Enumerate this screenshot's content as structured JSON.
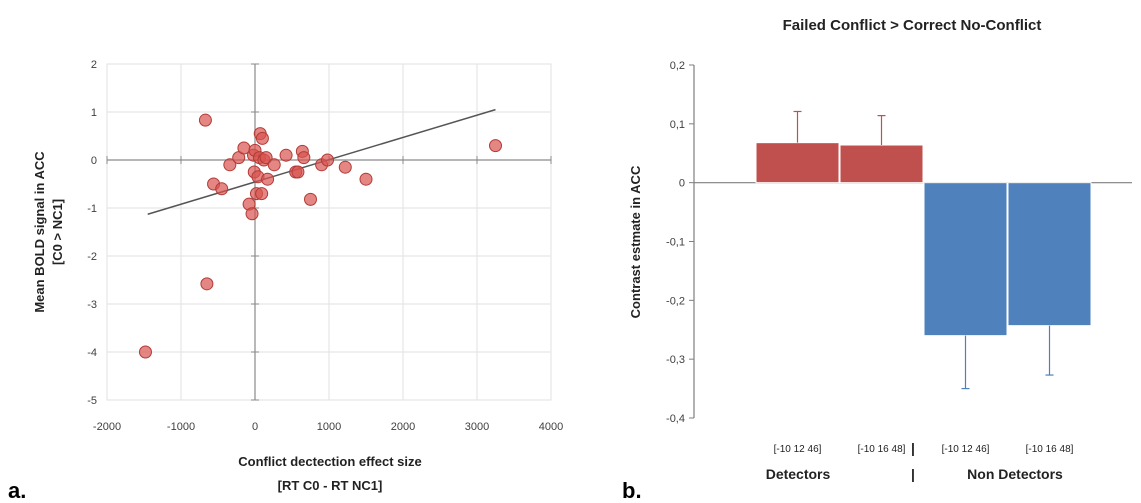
{
  "panels": {
    "a_label": "a.",
    "b_label": "b."
  },
  "chart_data": [
    {
      "type": "scatter",
      "title": "",
      "xlabel_line1": "Conflict dectection effect size",
      "xlabel_line2": "[RT C0 - RT NC1]",
      "ylabel_line1": "Mean BOLD signal in ACC",
      "ylabel_line2": "[C0 > NC1]",
      "xlim": [
        -2000,
        4000
      ],
      "ylim": [
        -5,
        2
      ],
      "xticks": [
        "-2000",
        "-1000",
        "0",
        "1000",
        "2000",
        "3000",
        "4000"
      ],
      "yticks": [
        "2",
        "1",
        "0",
        "-1",
        "-2",
        "-3",
        "-4",
        "-5"
      ],
      "grid": true,
      "colors": {
        "points": "#d9534f",
        "trendline": "#555555"
      },
      "trendline": {
        "x": [
          -1450,
          3250
        ],
        "y": [
          -1.13,
          1.05
        ]
      },
      "points": [
        {
          "x": -1480,
          "y": -4.0
        },
        {
          "x": -670,
          "y": 0.83
        },
        {
          "x": -650,
          "y": -2.58
        },
        {
          "x": -560,
          "y": -0.5
        },
        {
          "x": -450,
          "y": -0.6
        },
        {
          "x": -340,
          "y": -0.1
        },
        {
          "x": -220,
          "y": 0.05
        },
        {
          "x": -150,
          "y": 0.25
        },
        {
          "x": -80,
          "y": -0.92
        },
        {
          "x": -40,
          "y": -1.12
        },
        {
          "x": -20,
          "y": 0.1
        },
        {
          "x": -10,
          "y": -0.25
        },
        {
          "x": 0,
          "y": 0.2
        },
        {
          "x": 20,
          "y": -0.7
        },
        {
          "x": 40,
          "y": -0.35
        },
        {
          "x": 60,
          "y": 0.05
        },
        {
          "x": 70,
          "y": 0.55
        },
        {
          "x": 90,
          "y": -0.7
        },
        {
          "x": 100,
          "y": 0.45
        },
        {
          "x": 120,
          "y": 0.0
        },
        {
          "x": 150,
          "y": 0.05
        },
        {
          "x": 170,
          "y": -0.4
        },
        {
          "x": 260,
          "y": -0.1
        },
        {
          "x": 420,
          "y": 0.1
        },
        {
          "x": 550,
          "y": -0.25
        },
        {
          "x": 580,
          "y": -0.25
        },
        {
          "x": 640,
          "y": 0.18
        },
        {
          "x": 660,
          "y": 0.05
        },
        {
          "x": 750,
          "y": -0.82
        },
        {
          "x": 900,
          "y": -0.1
        },
        {
          "x": 980,
          "y": 0.0
        },
        {
          "x": 1220,
          "y": -0.15
        },
        {
          "x": 1500,
          "y": -0.4
        },
        {
          "x": 3250,
          "y": 0.3
        }
      ]
    },
    {
      "type": "bar",
      "title": "Failed Conflict > Correct No-Conflict",
      "xlabel": "",
      "ylabel": "Contrast estmate in ACC",
      "ylim": [
        -0.4,
        0.2
      ],
      "yticks": [
        "0,2",
        "0,1",
        "0",
        "-0,1",
        "-0,2",
        "-0,3",
        "-0,4"
      ],
      "grid": false,
      "categories": [
        "[-10 12 46]",
        "[-10 16 48]",
        "[-10 12 46]",
        "[-10 16 48]"
      ],
      "groups": [
        "Detectors",
        "Non Detectors"
      ],
      "group_separator": "|",
      "values": [
        0.068,
        0.064,
        -0.26,
        -0.243
      ],
      "errors": [
        0.053,
        0.05,
        0.09,
        0.084
      ],
      "colors": [
        "#c0504d",
        "#c0504d",
        "#4f81bd",
        "#4f81bd"
      ],
      "error_colors": [
        "#c0504d",
        "#c0504d",
        "#4f81bd",
        "#4f81bd"
      ]
    }
  ]
}
